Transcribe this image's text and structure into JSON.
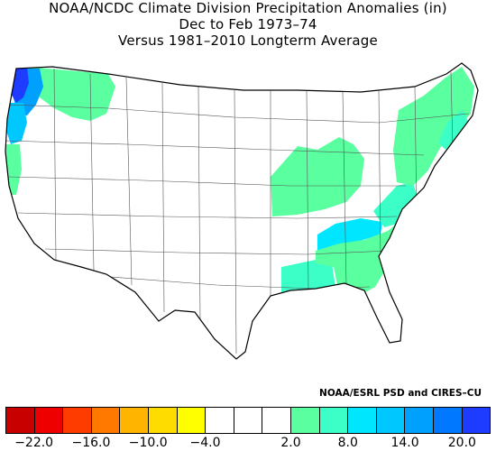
{
  "title": {
    "line1": "NOAA/NCDC Climate Division Precipitation Anomalies (in)",
    "line2": "Dec to Feb 1973–74",
    "line3": "Versus 1981–2010 Longterm Average"
  },
  "credit": "NOAA/ESRL PSD and CIRES–CU",
  "legend": {
    "colors": [
      "#c80000",
      "#ee0000",
      "#ff3c00",
      "#ff7800",
      "#ffb400",
      "#ffdc00",
      "#ffff00",
      "#ffffff",
      "#ffffff",
      "#ffffff",
      "#5affa0",
      "#3cffc8",
      "#00e6ff",
      "#00c8ff",
      "#00a0ff",
      "#0078ff",
      "#1e3cff"
    ],
    "tick_labels": [
      "−22.0",
      "−16.0",
      "−10.0",
      "−4.0",
      "2.0",
      "8.0",
      "14.0",
      "20.0"
    ],
    "tick_positions": [
      1,
      3,
      5,
      7,
      10,
      12,
      14,
      16
    ]
  },
  "map": {
    "background": "#ffffff",
    "border_color": "#444444",
    "anomaly_areas": [
      {
        "region": "washington-coast",
        "color": "#1e3cff"
      },
      {
        "region": "washington-west",
        "color": "#00a0ff"
      },
      {
        "region": "oregon-coast",
        "color": "#00c8ff"
      },
      {
        "region": "pacific-northwest-interior",
        "color": "#5affa0"
      },
      {
        "region": "northern-california",
        "color": "#5affa0"
      },
      {
        "region": "ohio-valley",
        "color": "#5affa0"
      },
      {
        "region": "tennessee-valley",
        "color": "#00e6ff"
      },
      {
        "region": "lower-mississippi",
        "color": "#3cffc8"
      },
      {
        "region": "southeast",
        "color": "#5affa0"
      },
      {
        "region": "appalachians",
        "color": "#3cffc8"
      },
      {
        "region": "northeast",
        "color": "#5affa0"
      },
      {
        "region": "new-england-coast",
        "color": "#3cffc8"
      }
    ]
  }
}
